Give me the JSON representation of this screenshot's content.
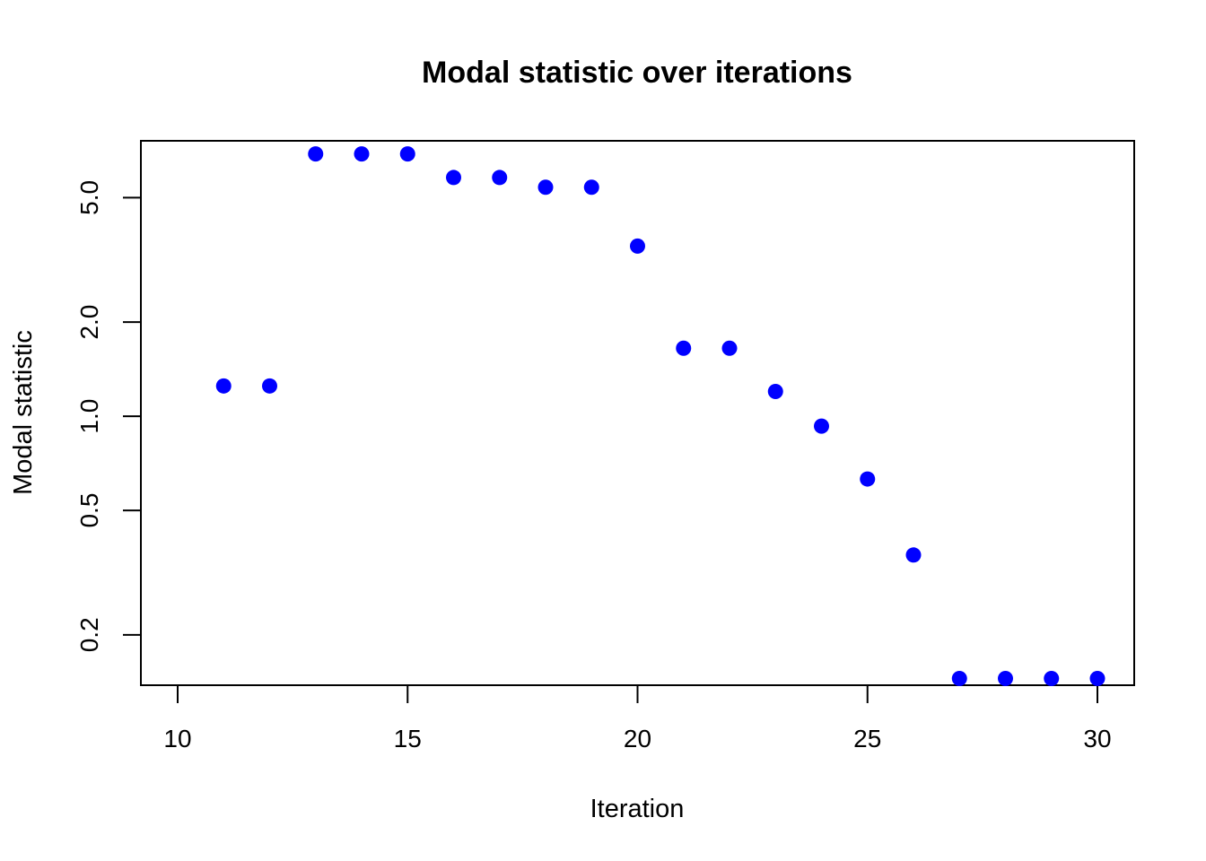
{
  "chart_data": {
    "type": "scatter",
    "title": "Modal statistic over iterations",
    "xlabel": "Iteration",
    "ylabel": "Modal statistic",
    "xlim": [
      9.2,
      30.8
    ],
    "ylim": [
      0.138,
      7.6
    ],
    "y_scale": "log",
    "x_ticks": [
      10,
      15,
      20,
      25,
      30
    ],
    "y_ticks": [
      0.2,
      0.5,
      1.0,
      2.0,
      5.0
    ],
    "y_tick_labels": [
      "0.2",
      "0.5",
      "1.0",
      "2.0",
      "5.0"
    ],
    "grid": false,
    "point_color": "#0000ff",
    "series": [
      {
        "x": [
          11,
          12,
          13,
          14,
          15,
          16,
          17,
          18,
          19,
          20,
          21,
          22,
          23,
          24,
          25,
          26,
          27,
          28,
          29,
          30
        ],
        "y": [
          1.25,
          1.25,
          6.9,
          6.9,
          6.9,
          5.8,
          5.8,
          5.4,
          5.4,
          3.5,
          1.65,
          1.65,
          1.2,
          0.93,
          0.63,
          0.36,
          0.145,
          0.145,
          0.145,
          0.145
        ]
      }
    ]
  }
}
